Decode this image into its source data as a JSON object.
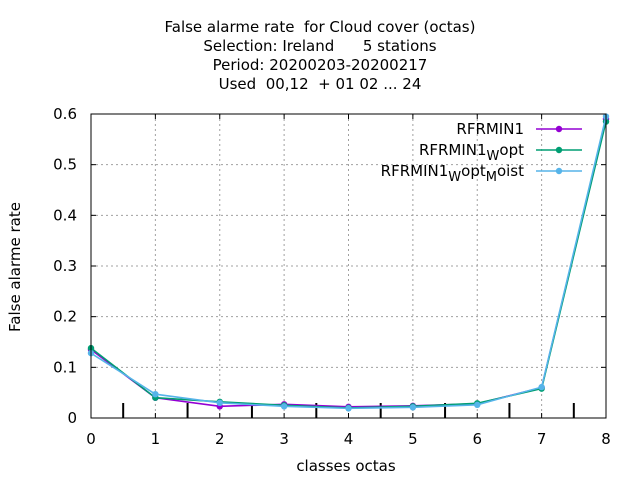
{
  "chart_data": {
    "type": "line",
    "title_lines": [
      "False alarme rate  for Cloud cover (octas)",
      "Selection: Ireland      5 stations",
      "Period: 20200203-20200217",
      "Used  00,12  + 01 02 ... 24"
    ],
    "xlabel": "classes octas",
    "ylabel": "False alarme rate",
    "xlim": [
      0,
      8
    ],
    "ylim": [
      0,
      0.6
    ],
    "x_ticks": [
      "0",
      "1",
      "2",
      "3",
      "4",
      "5",
      "6",
      "7",
      "8"
    ],
    "y_ticks": [
      "0",
      "0.1",
      "0.2",
      "0.3",
      "0.4",
      "0.5",
      "0.6"
    ],
    "grid": true,
    "legend_position": "top-right",
    "x": [
      0,
      1,
      2,
      3,
      4,
      5,
      6,
      7,
      8
    ],
    "series": [
      {
        "name": "RFRMIN1",
        "legend_base": "RFRMIN1",
        "legend_parts": [],
        "color": "#9400d3",
        "values": [
          0.135,
          0.04,
          0.023,
          0.027,
          0.022,
          0.024,
          0.028,
          0.06,
          0.59
        ]
      },
      {
        "name": "RFRMIN1_W opt",
        "legend_base": "RFRMIN1",
        "legend_parts": [
          [
            "W",
            "opt"
          ]
        ],
        "color": "#009e73",
        "values": [
          0.138,
          0.04,
          0.032,
          0.025,
          0.02,
          0.023,
          0.029,
          0.058,
          0.585
        ]
      },
      {
        "name": "RFRMIN1_W opt_M oist",
        "legend_base": "RFRMIN1",
        "legend_parts": [
          [
            "W",
            "opt"
          ],
          [
            "M",
            "oist"
          ]
        ],
        "color": "#56b4e9",
        "values": [
          0.128,
          0.047,
          0.03,
          0.023,
          0.019,
          0.021,
          0.026,
          0.061,
          0.595
        ]
      }
    ],
    "bottom_markers_x": [
      0.5,
      1.5,
      2.5,
      3.5,
      4.5,
      5.5,
      6.5,
      7.5
    ]
  }
}
